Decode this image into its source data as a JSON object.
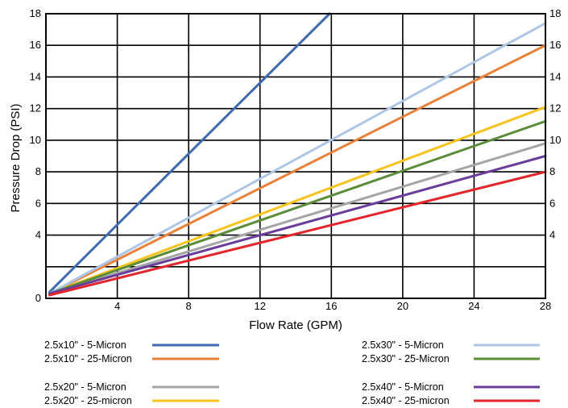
{
  "chart_data": {
    "type": "line",
    "title": "",
    "xlabel": "Flow Rate (GPM)",
    "ylabel": "Pressure Drop (PSI)",
    "xlim": [
      0,
      28
    ],
    "ylim": [
      0,
      18
    ],
    "x_ticks": [
      "4",
      "8",
      "12",
      "16",
      "20",
      "24",
      "28"
    ],
    "y_ticks_left": [
      "0",
      "4",
      "6",
      "8",
      "10",
      "12",
      "14",
      "16",
      "18"
    ],
    "y_ticks_right": [
      "4",
      "6",
      "8",
      "10",
      "12",
      "14",
      "16",
      "18"
    ],
    "grid": true,
    "legend_position": "bottom",
    "series": [
      {
        "name": "2.5x10\" - 5-Micron",
        "color": "#4169b0",
        "x": [
          0.2,
          15.9
        ],
        "y": [
          0.4,
          18.0
        ]
      },
      {
        "name": "2.5x10\" - 25-Micron",
        "color": "#e8813a",
        "x": [
          0.2,
          28
        ],
        "y": [
          0.3,
          16.0
        ]
      },
      {
        "name": "2.5x20\" - 5-Micron",
        "color": "#a5a5a5",
        "x": [
          0.2,
          28
        ],
        "y": [
          0.3,
          9.8
        ]
      },
      {
        "name": "2.5x20\" - 25-micron",
        "color": "#f6c31f",
        "x": [
          0.2,
          28
        ],
        "y": [
          0.3,
          12.1
        ]
      },
      {
        "name": "2.5x30\" - 5-Micron",
        "color": "#aec6e6",
        "x": [
          0.2,
          28
        ],
        "y": [
          0.3,
          17.4
        ]
      },
      {
        "name": "2.5x30\" - 25-Micron",
        "color": "#5b8c3a",
        "x": [
          0.2,
          28
        ],
        "y": [
          0.3,
          11.2
        ]
      },
      {
        "name": "2.5x40\" - 5-Micron",
        "color": "#6a3d9a",
        "x": [
          0.2,
          28
        ],
        "y": [
          0.3,
          9.0
        ]
      },
      {
        "name": "2.5x40\" - 25-micron",
        "color": "#e2262b",
        "x": [
          0.2,
          28
        ],
        "y": [
          0.2,
          8.0
        ]
      }
    ]
  }
}
